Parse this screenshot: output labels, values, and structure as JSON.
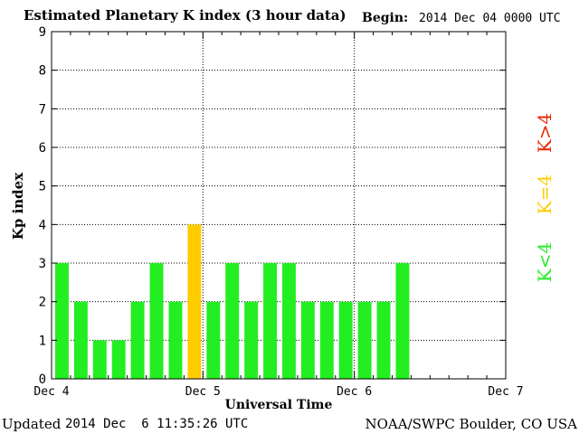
{
  "header": {
    "title": "Estimated Planetary K index (3 hour data)",
    "begin_label": "Begin:",
    "begin_value": "2014 Dec 04 0000 UTC"
  },
  "footer": {
    "updated_label": "Updated",
    "updated_value": "2014 Dec  6 11:35:26 UTC",
    "credit": "NOAA/SWPC Boulder, CO USA"
  },
  "legend": [
    {
      "label": "K<4",
      "color": "#22ee22"
    },
    {
      "label": "K=4",
      "color": "#ffcc00"
    },
    {
      "label": "K>4",
      "color": "#ee2200"
    }
  ],
  "chart_data": {
    "type": "bar",
    "title": "Estimated Planetary K index (3 hour data)",
    "xlabel": "Universal Time",
    "ylabel": "Kp index",
    "ylim": [
      0,
      9
    ],
    "yticks": [
      0,
      1,
      2,
      3,
      4,
      5,
      6,
      7,
      8,
      9
    ],
    "xticks": [
      "Dec 4",
      "Dec 5",
      "Dec 6",
      "Dec 7"
    ],
    "interval_hours": 3,
    "values": [
      3,
      2,
      1,
      1,
      2,
      3,
      2,
      4,
      2,
      3,
      2,
      3,
      3,
      2,
      2,
      2,
      2,
      2,
      3
    ],
    "grid": true,
    "colors": {
      "below4": "#22ee22",
      "equal4": "#ffcc00",
      "above4": "#ee2200"
    }
  }
}
